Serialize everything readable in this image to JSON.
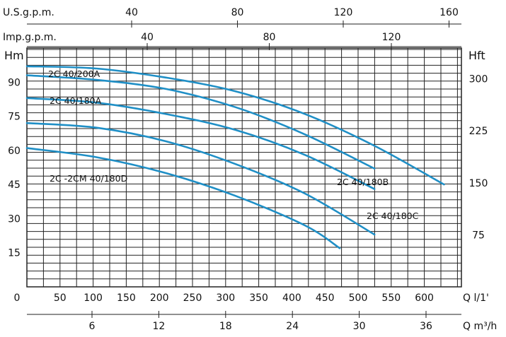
{
  "chart_data": {
    "type": "line",
    "title": "",
    "grid": true,
    "colors": {
      "curve": "#1f8fc6",
      "grid": "#222222",
      "text": "#111111"
    },
    "xlabel": "Q l/1'",
    "xlim": [
      0,
      625
    ],
    "ylabel": "Hm",
    "ylim": [
      0,
      105
    ],
    "x_ticks": [
      "0",
      "50",
      "100",
      "150",
      "200",
      "250",
      "300",
      "350",
      "400",
      "450",
      "500",
      "550",
      "600"
    ],
    "y_ticks": [
      "15",
      "30",
      "45",
      "60",
      "75",
      "90"
    ],
    "right_axis": {
      "label": "Hft",
      "ticks": [
        "75",
        "150",
        "225",
        "300"
      ]
    },
    "top_axes": [
      {
        "label": "U.S.g.p.m.",
        "ticks": [
          "40",
          "80",
          "120",
          "160"
        ]
      },
      {
        "label": "Imp.g.p.m.",
        "ticks": [
          "40",
          "80",
          "120"
        ]
      }
    ],
    "bottom_axis2": {
      "label": "Q m³/h",
      "ticks": [
        "6",
        "12",
        "18",
        "24",
        "30",
        "36"
      ]
    },
    "series": [
      {
        "name": "2C 40/200A",
        "x": [
          0,
          100,
          200,
          300,
          400,
          500,
          600
        ],
        "y": [
          97,
          96,
          92,
          86,
          76,
          62,
          45
        ]
      },
      {
        "name": "2C 40/180A",
        "x": [
          0,
          100,
          200,
          300,
          400,
          500
        ],
        "y": [
          93,
          91,
          87,
          79,
          67,
          52
        ]
      },
      {
        "name": "2C 40/180B",
        "x": [
          0,
          100,
          200,
          300,
          400,
          500
        ],
        "y": [
          83,
          81,
          76,
          69,
          58,
          43
        ]
      },
      {
        "name": "2C 40/180C",
        "x": [
          0,
          100,
          200,
          300,
          400,
          500
        ],
        "y": [
          72,
          70,
          64,
          54,
          41,
          23
        ]
      },
      {
        "name": "2C -2CM 40/180D",
        "x": [
          0,
          100,
          200,
          300,
          400,
          450
        ],
        "y": [
          61,
          57,
          50,
          40,
          27,
          17
        ]
      }
    ]
  }
}
